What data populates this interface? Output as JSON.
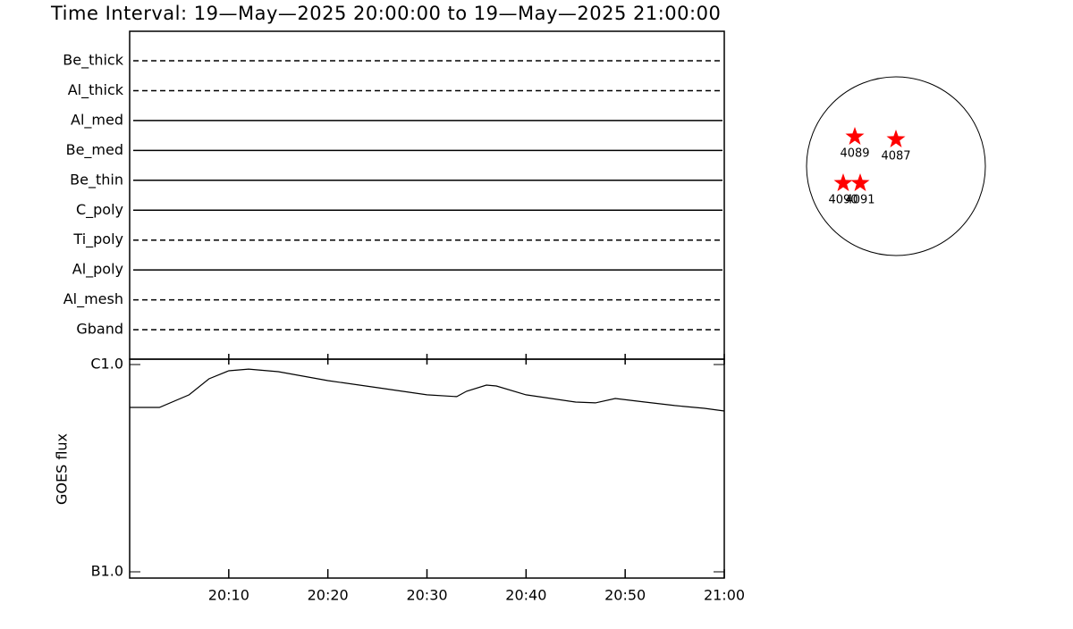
{
  "title": "Time Interval: 19—May—2025 20:00:00 to 19—May—2025 21:00:00",
  "filters": [
    {
      "name": "Be_thick",
      "style": "dashed"
    },
    {
      "name": "Al_thick",
      "style": "dashed"
    },
    {
      "name": "Al_med",
      "style": "solid"
    },
    {
      "name": "Be_med",
      "style": "solid"
    },
    {
      "name": "Be_thin",
      "style": "solid"
    },
    {
      "name": "C_poly",
      "style": "solid"
    },
    {
      "name": "Ti_poly",
      "style": "dashed"
    },
    {
      "name": "Al_poly",
      "style": "solid"
    },
    {
      "name": "Al_mesh",
      "style": "dashed"
    },
    {
      "name": "Gband",
      "style": "dashed"
    }
  ],
  "active_regions": [
    "4089",
    "4087",
    "4090",
    "4091"
  ],
  "chart_data": {
    "type": "line",
    "y_label": "GOES flux",
    "log_y": true,
    "color": "#000000",
    "x": [
      "20:00",
      "20:03",
      "20:06",
      "20:08",
      "20:10",
      "20:12",
      "20:15",
      "20:20",
      "20:25",
      "20:30",
      "20:33",
      "20:34",
      "20:36",
      "20:37",
      "20:40",
      "20:45",
      "20:47",
      "20:49",
      "20:52",
      "20:55",
      "20:58",
      "21:00"
    ],
    "values": [
      6.21e-07,
      6.21e-07,
      7.14e-07,
      8.53e-07,
      9.33e-07,
      9.51e-07,
      9.24e-07,
      8.36e-07,
      7.73e-07,
      7.14e-07,
      7e-07,
      7.43e-07,
      7.96e-07,
      7.88e-07,
      7.14e-07,
      6.59e-07,
      6.53e-07,
      6.86e-07,
      6.59e-07,
      6.34e-07,
      6.15e-07,
      5.97e-07
    ],
    "xlim": [
      "20:00",
      "21:00"
    ],
    "xticks": [
      "20:10",
      "20:20",
      "20:30",
      "20:40",
      "20:50",
      "21:00"
    ],
    "ylim": [
      1e-07,
      1e-06
    ],
    "yticks": [
      {
        "value": 1e-06,
        "label": "C1.0"
      },
      {
        "value": 1e-07,
        "label": "B1.0"
      }
    ]
  }
}
